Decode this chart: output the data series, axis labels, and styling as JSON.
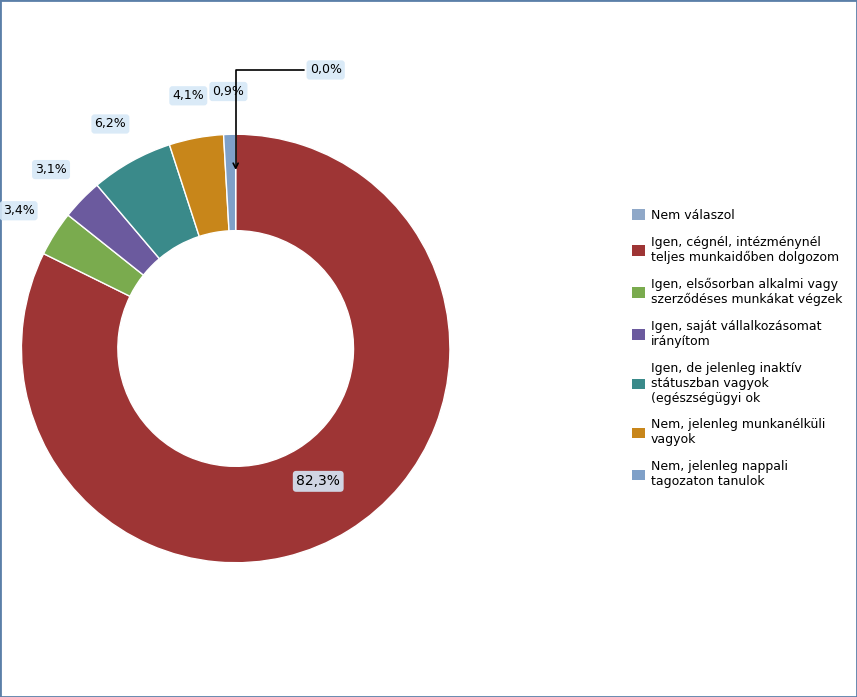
{
  "values": [
    0.0,
    82.3,
    3.4,
    3.1,
    6.2,
    4.1,
    0.9
  ],
  "colors": [
    "#8fa8c8",
    "#9e3535",
    "#7aab4e",
    "#6b5a9e",
    "#3a8a8a",
    "#c8861a",
    "#7fa0c8"
  ],
  "pct_labels": [
    "0,0%",
    "82,3%",
    "3,4%",
    "3,1%",
    "6,2%",
    "4,1%",
    "0,9%"
  ],
  "legend_labels": [
    "Nem válaszol",
    "Igen, cégnél, intézménynél\nteljes munkaidőben dolgozom",
    "Igen, elsősorban alkalmi vagy\nszerződéses munkákat végzek",
    "Igen, saját vállalkozásomat\nirányítom",
    "Igen, de jelenleg inaktív\nstátuszban vagyok\n(egészségügyi ok",
    "Nem, jelenleg munkanélküli\nvagyok",
    "Nem, jelenleg nappali\ntagozaton tanulok"
  ],
  "background_color": "#ffffff",
  "border_color": "#5b7fa8",
  "label_bbox_color": "#d6e8f7",
  "donut_width": 0.45,
  "font_size_pct": 9,
  "font_size_legend": 9
}
